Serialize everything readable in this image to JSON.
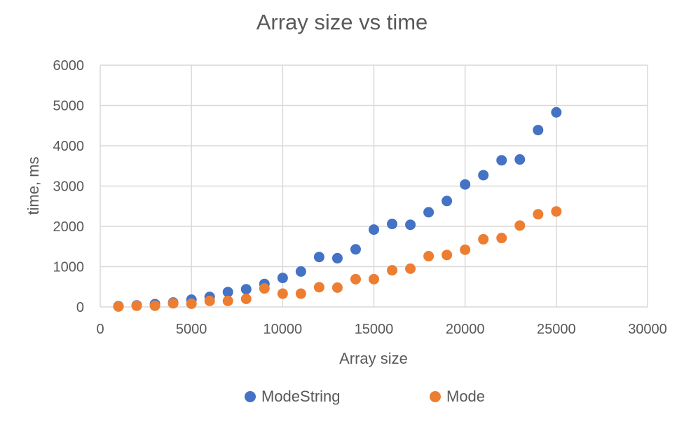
{
  "chart_data": {
    "type": "scatter",
    "title": "Array size vs time",
    "xlabel": "Array size",
    "ylabel": "time, ms",
    "xlim": [
      0,
      30000
    ],
    "ylim": [
      0,
      6000
    ],
    "xticks": [
      "0",
      "5000",
      "10000",
      "15000",
      "20000",
      "25000",
      "30000"
    ],
    "yticks": [
      "0",
      "1000",
      "2000",
      "3000",
      "4000",
      "5000",
      "6000"
    ],
    "grid": true,
    "legend_position": "bottom",
    "series": [
      {
        "name": "ModeString",
        "color": "#4472C4",
        "x": [
          1000,
          2000,
          3000,
          4000,
          5000,
          6000,
          7000,
          8000,
          9000,
          10000,
          11000,
          12000,
          13000,
          14000,
          15000,
          16000,
          17000,
          18000,
          19000,
          20000,
          21000,
          22000,
          23000,
          24000,
          25000
        ],
        "y": [
          20,
          40,
          70,
          110,
          180,
          250,
          370,
          440,
          570,
          720,
          880,
          1240,
          1210,
          1430,
          1920,
          2060,
          2040,
          2350,
          2630,
          3040,
          3270,
          3640,
          3660,
          4390,
          4830
        ]
      },
      {
        "name": "Mode",
        "color": "#ED7D31",
        "x": [
          1000,
          2000,
          3000,
          4000,
          5000,
          6000,
          7000,
          8000,
          9000,
          10000,
          11000,
          12000,
          13000,
          14000,
          15000,
          16000,
          17000,
          18000,
          19000,
          20000,
          21000,
          22000,
          23000,
          24000,
          25000
        ],
        "y": [
          10,
          30,
          30,
          90,
          80,
          150,
          150,
          200,
          460,
          330,
          330,
          490,
          480,
          690,
          690,
          910,
          950,
          1260,
          1290,
          1420,
          1680,
          1710,
          2020,
          2300,
          2370
        ]
      }
    ]
  }
}
